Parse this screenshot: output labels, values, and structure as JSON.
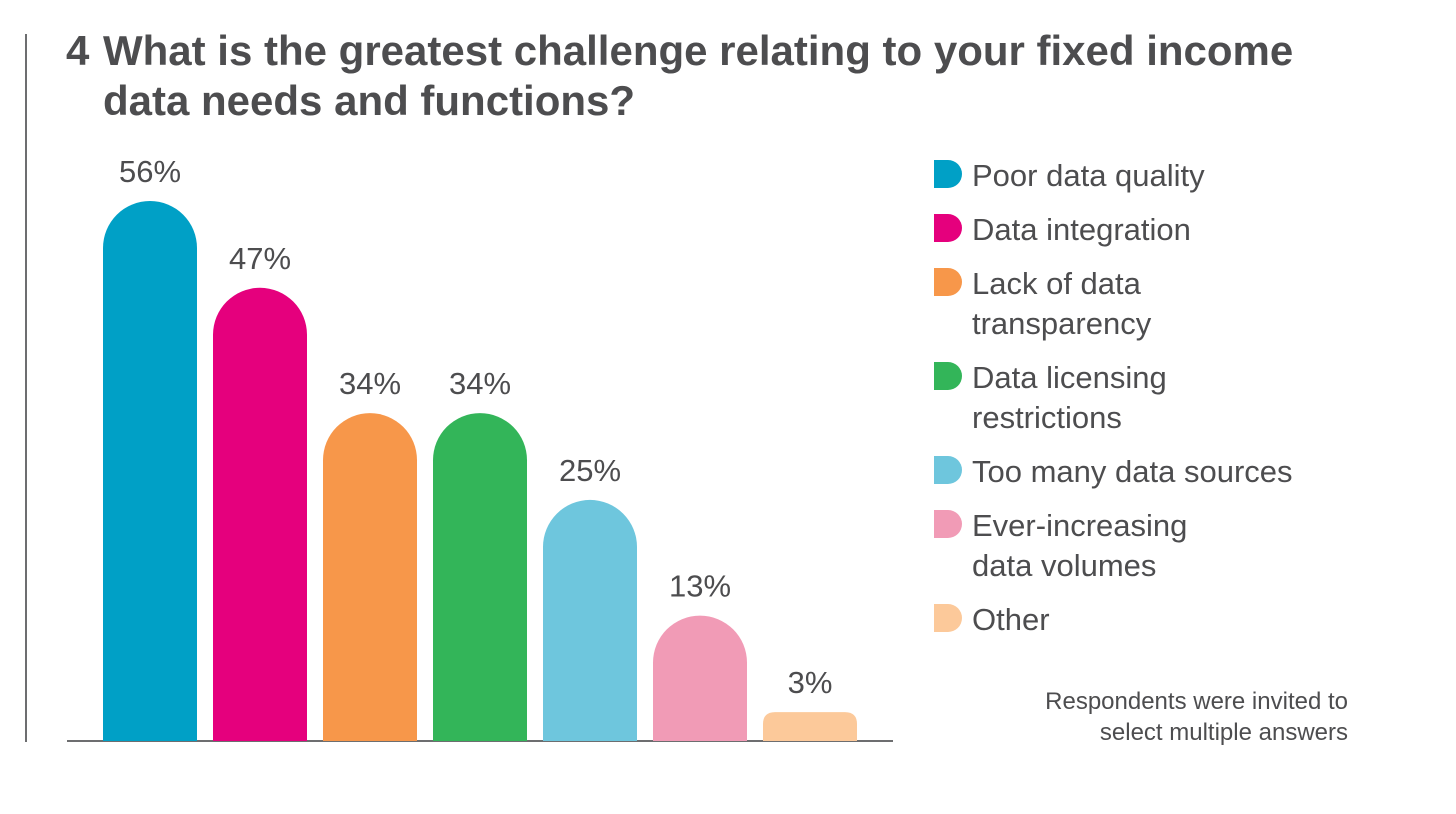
{
  "question": {
    "number": "4",
    "text": "What is the greatest challenge relating to your fixed income data needs and functions?"
  },
  "chart_data": {
    "type": "bar",
    "title": "What is the greatest challenge relating to your fixed income data needs and functions?",
    "categories": [
      "Poor data quality",
      "Data integration",
      "Lack of data transparency",
      "Data licensing restrictions",
      "Too many data sources",
      "Ever-increasing data volumes",
      "Other"
    ],
    "values": [
      56,
      47,
      34,
      34,
      25,
      13,
      3
    ],
    "value_labels": [
      "56%",
      "47%",
      "34%",
      "34%",
      "25%",
      "13%",
      "3%"
    ],
    "colors": [
      "#00a0c6",
      "#e5007d",
      "#f7974a",
      "#33b559",
      "#6ec6dd",
      "#f19bb6",
      "#fcc99a"
    ],
    "ylim": [
      0,
      56
    ],
    "xlabel": "",
    "ylabel": "",
    "grid": false,
    "legend_position": "right"
  },
  "legend": {
    "items": [
      {
        "label": "Poor data quality",
        "color": "#00a0c6"
      },
      {
        "label": "Data integration",
        "color": "#e5007d"
      },
      {
        "label": "Lack of data\ntransparency",
        "color": "#f7974a"
      },
      {
        "label": "Data licensing\nrestrictions",
        "color": "#33b559"
      },
      {
        "label": "Too many data sources",
        "color": "#6ec6dd"
      },
      {
        "label": "Ever-increasing\ndata volumes",
        "color": "#f19bb6"
      },
      {
        "label": "Other",
        "color": "#fcc99a"
      }
    ]
  },
  "note": "Respondents were invited to\nselect multiple answers"
}
